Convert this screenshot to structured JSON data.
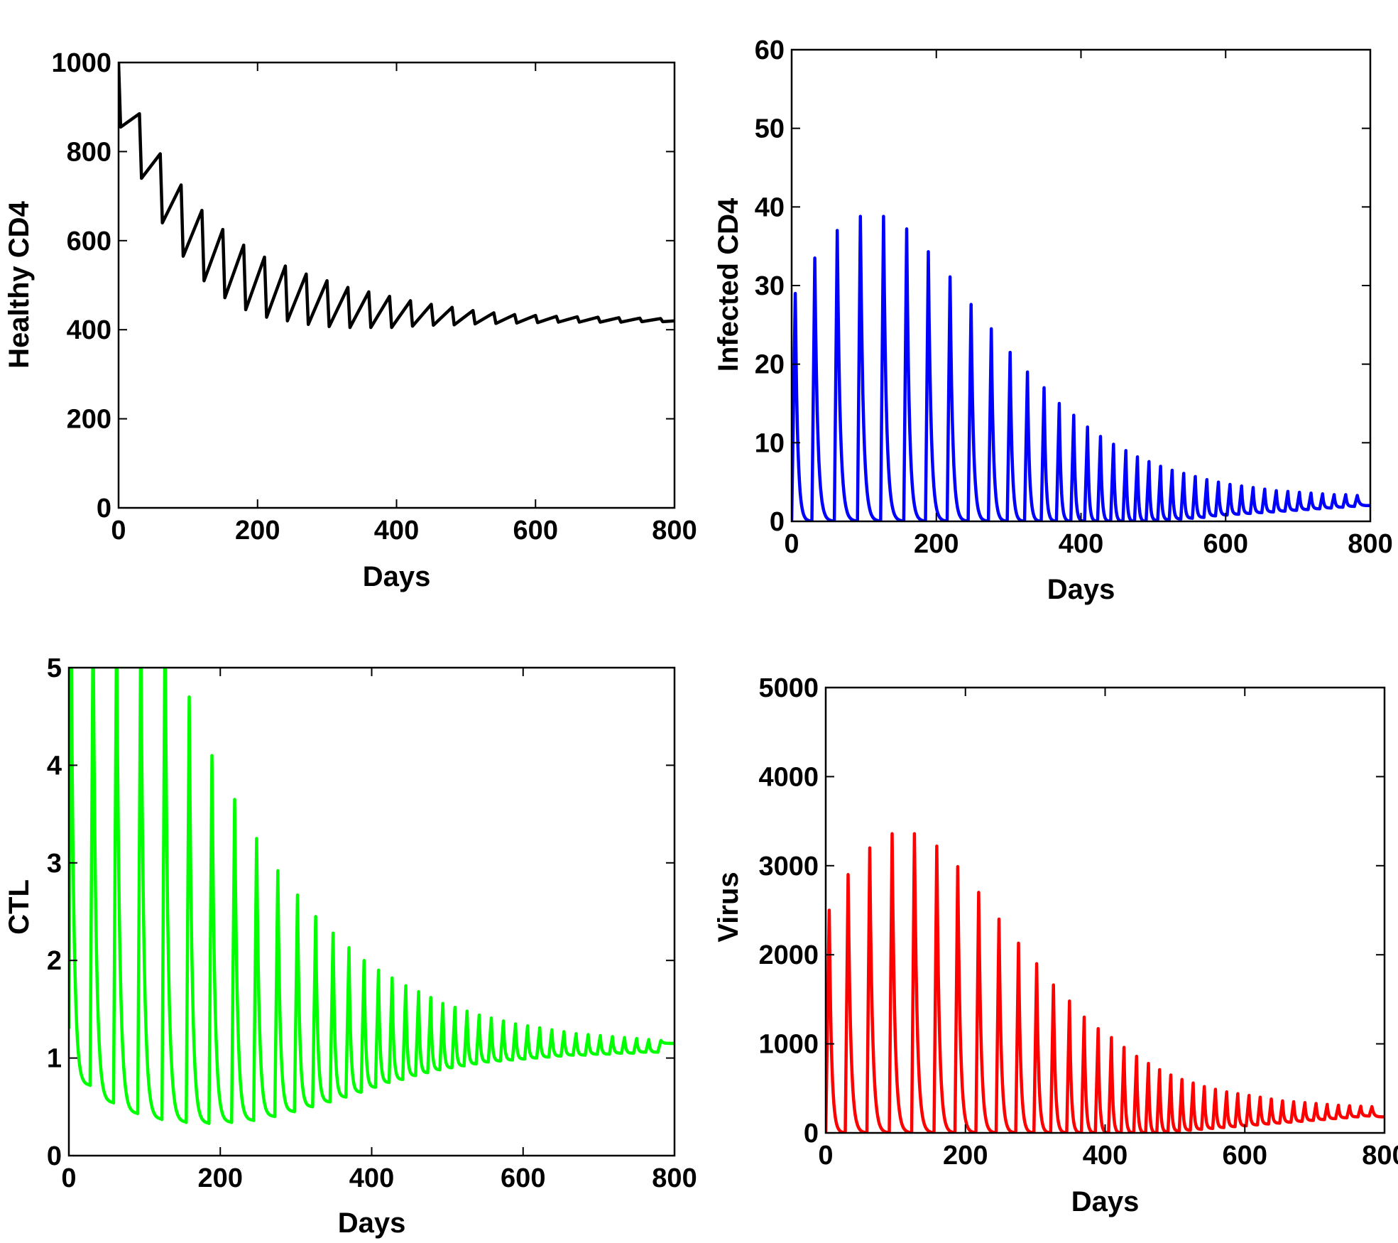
{
  "chart_data": [
    {
      "type": "line",
      "title": "",
      "xlabel": "Days",
      "ylabel": "Healthy CD4",
      "xlim": [
        0,
        800
      ],
      "ylim": [
        0,
        1000
      ],
      "xticks": [
        "0",
        "200",
        "400",
        "600",
        "800"
      ],
      "yticks": [
        "0",
        "200",
        "400",
        "600",
        "800",
        "1000"
      ],
      "color": "#000000",
      "grid": false,
      "series": [
        {
          "shape": "sawtooth",
          "period_days": 30,
          "x": [
            0,
            3,
            30,
            33,
            60,
            63,
            90,
            93,
            120,
            123,
            150,
            153,
            180,
            183,
            210,
            213,
            240,
            243,
            270,
            273,
            300,
            303,
            330,
            333,
            360,
            363,
            390,
            393,
            420,
            423,
            450,
            453,
            480,
            483,
            510,
            513,
            540,
            543,
            570,
            573,
            600,
            603,
            630,
            633,
            660,
            663,
            690,
            693,
            720,
            723,
            750,
            753,
            780,
            783,
            800
          ],
          "y": [
            1000,
            855,
            885,
            740,
            795,
            640,
            725,
            565,
            668,
            510,
            625,
            472,
            590,
            445,
            563,
            428,
            543,
            420,
            525,
            412,
            510,
            407,
            495,
            405,
            485,
            405,
            475,
            405,
            465,
            408,
            457,
            410,
            450,
            411,
            443,
            413,
            438,
            414,
            434,
            415,
            432,
            416,
            430,
            417,
            429,
            417,
            428,
            417,
            427,
            417,
            426,
            418,
            425,
            418,
            420
          ]
        }
      ]
    },
    {
      "type": "line",
      "title": "",
      "xlabel": "Days",
      "ylabel": "Infected CD4",
      "xlim": [
        0,
        800
      ],
      "ylim": [
        0,
        60
      ],
      "xticks": [
        "0",
        "200",
        "400",
        "600",
        "800"
      ],
      "yticks": [
        "0",
        "10",
        "20",
        "30",
        "40",
        "50",
        "60"
      ],
      "color": "#0000ff",
      "grid": false,
      "series": [
        {
          "shape": "periodic peaks",
          "peak_days": [
            5,
            32,
            63,
            95,
            127,
            159,
            189,
            219,
            248,
            276,
            302,
            326,
            349,
            370,
            390,
            409,
            427,
            445,
            462,
            478,
            494,
            510,
            526,
            542,
            558,
            574,
            590,
            606,
            622,
            638,
            654,
            670,
            686,
            702,
            718,
            734,
            750,
            766,
            782
          ],
          "peak_values": [
            29,
            33.5,
            37,
            38.8,
            38.8,
            37.2,
            34.3,
            31.1,
            27.6,
            24.5,
            21.5,
            19,
            17,
            15,
            13.5,
            12,
            10.8,
            9.8,
            9,
            8.2,
            7.6,
            7,
            6.5,
            6.1,
            5.7,
            5.3,
            5,
            4.7,
            4.5,
            4.3,
            4.1,
            3.9,
            3.8,
            3.7,
            3.6,
            3.5,
            3.4,
            3.4,
            3.3
          ],
          "trough_values": [
            0,
            0,
            0,
            0,
            0,
            0,
            0,
            0,
            0,
            0,
            0,
            0,
            0,
            0,
            0,
            0,
            0,
            0,
            0,
            0,
            0,
            0.1,
            0.2,
            0.3,
            0.4,
            0.5,
            0.7,
            0.8,
            0.9,
            1,
            1.1,
            1.2,
            1.3,
            1.4,
            1.5,
            1.6,
            1.7,
            1.8,
            1.9
          ],
          "end_value": 2
        }
      ]
    },
    {
      "type": "line",
      "title": "",
      "xlabel": "Days",
      "ylabel": "CTL",
      "xlim": [
        0,
        800
      ],
      "ylim": [
        0,
        5
      ],
      "xticks": [
        "0",
        "200",
        "400",
        "600",
        "800"
      ],
      "yticks": [
        "0",
        "1",
        "2",
        "3",
        "4",
        "5"
      ],
      "color": "#00ff00",
      "grid": false,
      "series": [
        {
          "shape": "periodic peaks",
          "peak_days": [
            3,
            32,
            63,
            95,
            127,
            159,
            189,
            219,
            248,
            276,
            302,
            326,
            349,
            370,
            390,
            409,
            427,
            445,
            462,
            478,
            494,
            510,
            526,
            542,
            558,
            574,
            590,
            606,
            622,
            638,
            654,
            670,
            686,
            702,
            718,
            734,
            750,
            766,
            782
          ],
          "peak_values": [
            5.5,
            5.5,
            5.5,
            5.5,
            5.5,
            4.7,
            4.1,
            3.65,
            3.25,
            2.92,
            2.67,
            2.45,
            2.28,
            2.13,
            2,
            1.9,
            1.82,
            1.74,
            1.68,
            1.62,
            1.56,
            1.52,
            1.48,
            1.44,
            1.41,
            1.38,
            1.35,
            1.33,
            1.31,
            1.29,
            1.27,
            1.25,
            1.24,
            1.23,
            1.22,
            1.21,
            1.2,
            1.19,
            1.18
          ],
          "trough_values": [
            1.3,
            0.72,
            0.54,
            0.43,
            0.37,
            0.34,
            0.33,
            0.34,
            0.36,
            0.4,
            0.45,
            0.5,
            0.55,
            0.6,
            0.65,
            0.7,
            0.75,
            0.78,
            0.82,
            0.85,
            0.88,
            0.9,
            0.92,
            0.94,
            0.96,
            0.97,
            0.98,
            0.99,
            1,
            1.01,
            1.02,
            1.03,
            1.03,
            1.04,
            1.04,
            1.05,
            1.05,
            1.06,
            1.06
          ],
          "end_value": 1.15
        }
      ]
    },
    {
      "type": "line",
      "title": "",
      "xlabel": "Days",
      "ylabel": "Virus",
      "xlim": [
        0,
        800
      ],
      "ylim": [
        0,
        5000
      ],
      "xticks": [
        "0",
        "200",
        "400",
        "600",
        "800"
      ],
      "yticks": [
        "0",
        "1000",
        "2000",
        "3000",
        "4000",
        "5000"
      ],
      "color": "#ff0000",
      "grid": false,
      "series": [
        {
          "shape": "periodic peaks",
          "peak_days": [
            5,
            32,
            63,
            95,
            127,
            159,
            189,
            219,
            248,
            276,
            302,
            326,
            349,
            370,
            390,
            409,
            427,
            445,
            462,
            478,
            494,
            510,
            526,
            542,
            558,
            574,
            590,
            606,
            622,
            638,
            654,
            670,
            686,
            702,
            718,
            734,
            750,
            766,
            782
          ],
          "peak_values": [
            2500,
            2900,
            3200,
            3360,
            3360,
            3220,
            2990,
            2700,
            2400,
            2130,
            1900,
            1660,
            1480,
            1300,
            1170,
            1070,
            960,
            860,
            780,
            710,
            650,
            600,
            560,
            520,
            490,
            460,
            440,
            420,
            400,
            380,
            360,
            350,
            340,
            330,
            320,
            310,
            305,
            300,
            295
          ],
          "trough_values": [
            0,
            0,
            0,
            0,
            0,
            0,
            0,
            0,
            0,
            0,
            0,
            0,
            0,
            0,
            0,
            0,
            0,
            0,
            0,
            0,
            10,
            20,
            30,
            40,
            50,
            60,
            70,
            80,
            90,
            100,
            110,
            120,
            130,
            140,
            150,
            160,
            170,
            180,
            190
          ],
          "end_value": 180
        }
      ]
    }
  ]
}
